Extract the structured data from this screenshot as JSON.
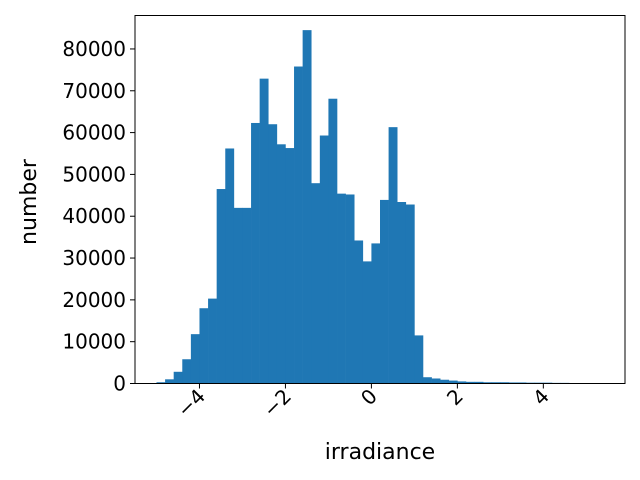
{
  "chart_data": {
    "type": "bar",
    "title": "",
    "xlabel": "irradiance",
    "ylabel": "number",
    "xlim": [
      -5.5,
      5.9
    ],
    "ylim": [
      0,
      88000
    ],
    "x_ticks": [
      -4,
      -2,
      0,
      2,
      4
    ],
    "x_tick_labels": [
      "−4",
      "−2",
      "0",
      "2",
      "4"
    ],
    "y_ticks": [
      0,
      10000,
      20000,
      30000,
      40000,
      50000,
      60000,
      70000,
      80000
    ],
    "y_tick_labels": [
      "0",
      "10000",
      "20000",
      "30000",
      "40000",
      "50000",
      "60000",
      "70000",
      "80000"
    ],
    "bin_start": -5.0,
    "bin_width": 0.2,
    "values": [
      300,
      1000,
      2800,
      5800,
      11800,
      18000,
      20300,
      46500,
      56200,
      42000,
      42000,
      62300,
      72900,
      62000,
      57200,
      56300,
      75800,
      84500,
      47900,
      59300,
      68100,
      45400,
      45200,
      34200,
      29200,
      33500,
      43900,
      61300,
      43400,
      42800,
      11500,
      1500,
      1200,
      900,
      700,
      500,
      400,
      400,
      300,
      300,
      300,
      250,
      250,
      200,
      200,
      200,
      150,
      150,
      0,
      0,
      0,
      0
    ],
    "color": "#1f77b4",
    "grid": false
  }
}
